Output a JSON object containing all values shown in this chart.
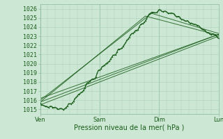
{
  "title": "",
  "xlabel": "Pression niveau de la mer( hPa )",
  "bg_color": "#cce8d4",
  "grid_color": "#aacfb8",
  "line_color": "#1a5c1a",
  "ylim": [
    1014.5,
    1026.5
  ],
  "yticks": [
    1015,
    1016,
    1017,
    1018,
    1019,
    1020,
    1021,
    1022,
    1023,
    1024,
    1025,
    1026
  ],
  "xtick_labels": [
    "Ven",
    "Sam",
    "Dim",
    "Lun"
  ],
  "xtick_positions": [
    0,
    48,
    96,
    144
  ],
  "total_hours": 144,
  "xlabel_fontsize": 7,
  "tick_fontsize": 6,
  "line_width": 0.7,
  "marker_size": 1.8
}
